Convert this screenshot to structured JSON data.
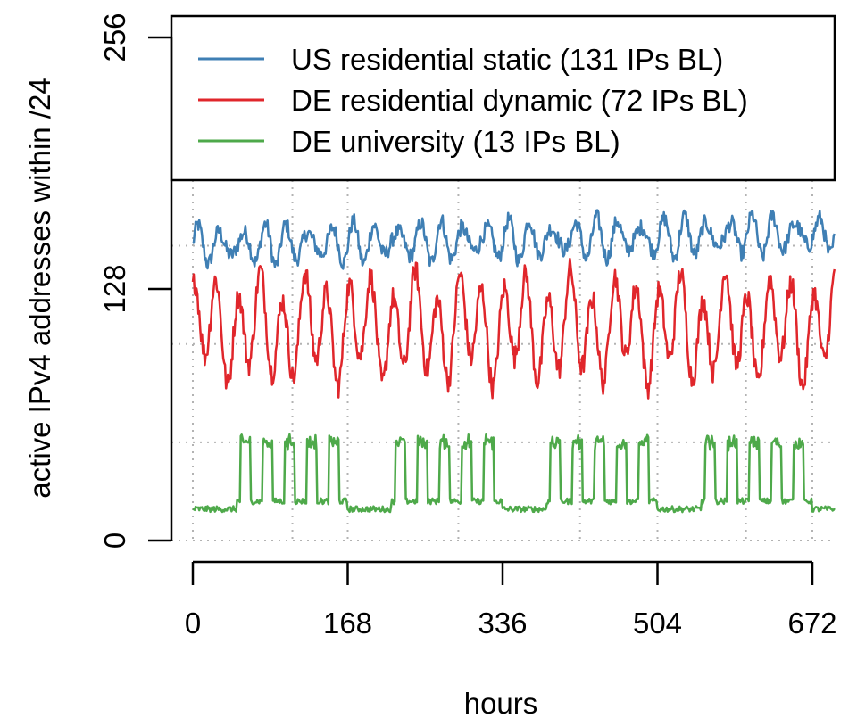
{
  "chart_data": {
    "type": "line",
    "title": "",
    "xlabel": "hours",
    "ylabel": "active IPv4 addresses within /24",
    "xlim": [
      0,
      696
    ],
    "ylim": [
      0,
      256
    ],
    "x_ticks": [
      0,
      168,
      336,
      504,
      672
    ],
    "x_tick_labels": [
      "0",
      "168",
      "336",
      "504",
      "672"
    ],
    "y_ticks": [
      0,
      128,
      256
    ],
    "y_tick_labels": [
      "0",
      "128",
      "256"
    ],
    "grid_x": [
      0,
      108,
      168,
      288,
      420,
      504,
      600,
      672
    ],
    "grid_y": [
      0,
      50,
      100,
      150,
      200,
      250
    ],
    "grid": true,
    "legend_position": "top",
    "series": [
      {
        "name": "US residential static (131 IPs BL)",
        "color": "#3f7fb4",
        "base": 150,
        "amp_daily": 8,
        "amp_fast": 3,
        "noise": 4
      },
      {
        "name": "DE residential dynamic (72 IPs BL)",
        "color": "#e0262b",
        "base": 108,
        "amp_daily": 22,
        "amp_fast": 0,
        "noise": 6
      },
      {
        "name": "DE university (13 IPs BL)",
        "color": "#4ea94a",
        "weekday_hi": 50,
        "weekday_lo": 20,
        "weekend_lo": 16,
        "noise": 3
      }
    ]
  }
}
